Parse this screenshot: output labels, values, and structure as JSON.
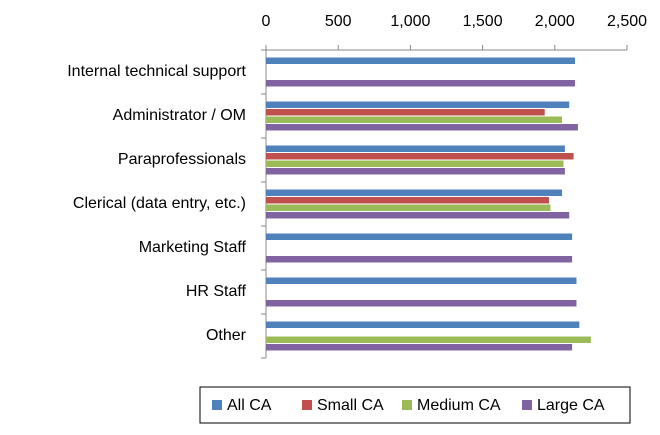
{
  "chart_data": {
    "type": "bar",
    "orientation": "horizontal",
    "categories": [
      "Internal technical support",
      "Administrator / OM",
      "Paraprofessionals",
      "Clerical (data entry, etc.)",
      "Marketing Staff",
      "HR Staff",
      "Other"
    ],
    "series": [
      {
        "name": "All CA",
        "color": "#4f81bd",
        "values": [
          2140,
          2100,
          2070,
          2050,
          2120,
          2150,
          2170
        ]
      },
      {
        "name": "Small CA",
        "color": "#c0504d",
        "values": [
          null,
          1930,
          2130,
          1960,
          null,
          null,
          null
        ]
      },
      {
        "name": "Medium CA",
        "color": "#9bbb59",
        "values": [
          null,
          2050,
          2060,
          1970,
          null,
          null,
          2250
        ]
      },
      {
        "name": "Large CA",
        "color": "#8064a2",
        "values": [
          2140,
          2160,
          2070,
          2100,
          2120,
          2150,
          2120
        ]
      }
    ],
    "xlim": [
      0,
      2500
    ],
    "xticks": [
      0,
      500,
      {
        "value": 1000,
        "label": "1,000"
      },
      {
        "value": 1500,
        "label": "1,500"
      },
      {
        "value": 2000,
        "label": "2,000"
      },
      {
        "value": 2500,
        "label": "2,500"
      }
    ],
    "grid": false,
    "legend": "bottom"
  }
}
